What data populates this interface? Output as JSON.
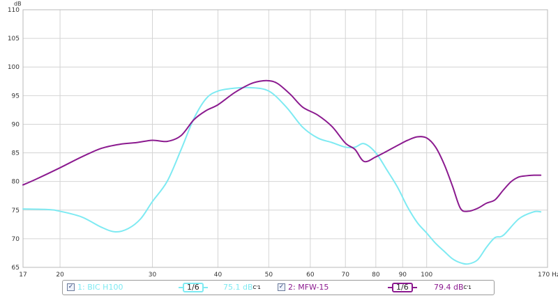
{
  "chart_data": {
    "type": "line",
    "ylabel": "dB",
    "xunit": "Hz",
    "ylim": [
      65,
      110
    ],
    "xlim": [
      17,
      170
    ],
    "x_scale": "log",
    "grid": true,
    "y_ticks": [
      "65",
      "70",
      "75",
      "80",
      "85",
      "90",
      "95",
      "100",
      "105",
      "110"
    ],
    "y_tick_values": [
      65,
      70,
      75,
      80,
      85,
      90,
      95,
      100,
      105,
      110
    ],
    "x_ticks": [
      "17",
      "20",
      "30",
      "40",
      "50",
      "60",
      "70",
      "80",
      "90",
      "100",
      "170 Hz"
    ],
    "x_tick_values": [
      17,
      20,
      30,
      40,
      50,
      60,
      70,
      80,
      90,
      100,
      170
    ],
    "series": [
      {
        "name": "1: BIC H100",
        "color": "#7eeaf2",
        "x": [
          17,
          19,
          20,
          22,
          24,
          25.5,
          27,
          28.5,
          30,
          32,
          34,
          36,
          38,
          40,
          43,
          46,
          50,
          54,
          58,
          62,
          66,
          70,
          73,
          76,
          80,
          84,
          88,
          92,
          96,
          100,
          104,
          108,
          112,
          116,
          120,
          125,
          130,
          135,
          140,
          150,
          160,
          165
        ],
        "y": [
          75.2,
          75.1,
          74.8,
          73.8,
          72.0,
          71.2,
          71.8,
          73.5,
          76.5,
          80.0,
          85.5,
          91.0,
          94.5,
          95.8,
          96.3,
          96.4,
          95.8,
          93.0,
          89.5,
          87.6,
          86.8,
          86.0,
          86.0,
          86.6,
          85.0,
          82.0,
          79.0,
          75.5,
          72.8,
          71.0,
          69.2,
          67.8,
          66.5,
          65.8,
          65.6,
          66.3,
          68.5,
          70.2,
          70.6,
          73.5,
          74.7,
          74.7
        ]
      },
      {
        "name": "2: MFW-15",
        "color": "#8b1a8f",
        "x": [
          17,
          18,
          20,
          22,
          24,
          26,
          28,
          30,
          32,
          34,
          36,
          38,
          40,
          43,
          46,
          48,
          50,
          52,
          55,
          58,
          62,
          66,
          70,
          73,
          76,
          80,
          84,
          88,
          92,
          96,
          100,
          104,
          108,
          112,
          116,
          120,
          125,
          130,
          135,
          140,
          145,
          150,
          155,
          160,
          165
        ],
        "y": [
          79.4,
          80.4,
          82.4,
          84.3,
          85.8,
          86.5,
          86.8,
          87.2,
          87.0,
          88.0,
          90.8,
          92.4,
          93.4,
          95.5,
          97.0,
          97.5,
          97.6,
          97.1,
          95.2,
          93.0,
          91.6,
          89.6,
          86.7,
          85.6,
          83.5,
          84.3,
          85.3,
          86.3,
          87.2,
          87.8,
          87.6,
          86.0,
          83.0,
          79.2,
          75.3,
          74.8,
          75.3,
          76.2,
          76.8,
          78.5,
          80.0,
          80.8,
          81.0,
          81.1,
          81.1
        ]
      }
    ]
  },
  "legend": [
    {
      "checked": "✓",
      "label": "1: BIC H100",
      "smoothing": "1/6",
      "level": "75.1 dB",
      "level_sup": "C'1",
      "color": "#7eeaf2"
    },
    {
      "checked": "✓",
      "label": "2: MFW-15",
      "smoothing": "1/6",
      "level": "79.4 dB",
      "level_sup": "C'1",
      "color": "#8b1a8f"
    }
  ]
}
